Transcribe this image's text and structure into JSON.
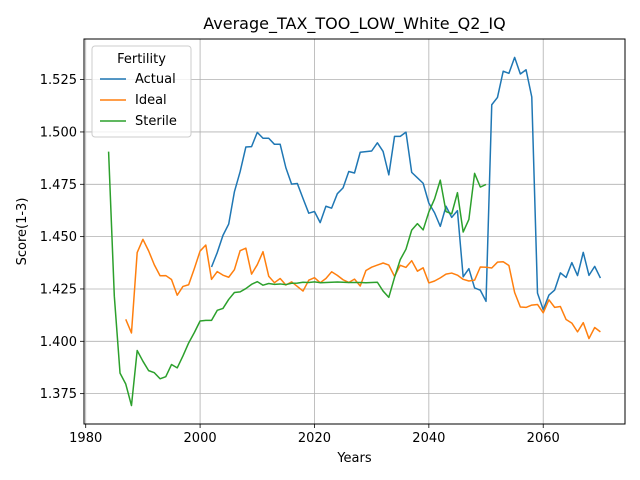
{
  "chart_data": {
    "type": "line",
    "title": "Average_TAX_TOO_LOW_White_Q2_IQ",
    "xlabel": "Years",
    "ylabel": "Score(1-3)",
    "xlim": [
      1979.7,
      2074.3
    ],
    "ylim": [
      1.3605,
      1.5444
    ],
    "xticks": [
      1980,
      2000,
      2020,
      2040,
      2060
    ],
    "xtick_labels": [
      "1980",
      "2000",
      "2020",
      "2040",
      "2060"
    ],
    "yticks": [
      1.375,
      1.4,
      1.425,
      1.45,
      1.475,
      1.5,
      1.525
    ],
    "ytick_labels": [
      "1.375",
      "1.400",
      "1.425",
      "1.450",
      "1.475",
      "1.500",
      "1.525"
    ],
    "grid": true,
    "legend": {
      "title": "Fertility",
      "position": "upper-left"
    },
    "series": [
      {
        "name": "Actual",
        "color": "#1f77b4",
        "x": [
          2002,
          2003,
          2004,
          2005,
          2006,
          2007,
          2008,
          2009,
          2010,
          2011,
          2012,
          2013,
          2014,
          2015,
          2016,
          2017,
          2018,
          2019,
          2020,
          2021,
          2022,
          2023,
          2024,
          2025,
          2026,
          2027,
          2028,
          2029,
          2030,
          2031,
          2032,
          2033,
          2034,
          2035,
          2036,
          2037,
          2038,
          2039,
          2040,
          2041,
          2042,
          2043,
          2044,
          2045,
          2046,
          2047,
          2048,
          2049,
          2050,
          2051,
          2052,
          2053,
          2054,
          2055,
          2056,
          2057,
          2058,
          2059,
          2060,
          2061,
          2062,
          2063,
          2064,
          2065,
          2066,
          2067,
          2068,
          2069,
          2070
        ],
        "values": [
          1.4355,
          1.4424,
          1.4506,
          1.456,
          1.4714,
          1.481,
          1.4928,
          1.493,
          1.4998,
          1.497,
          1.497,
          1.4941,
          1.4941,
          1.4829,
          1.4751,
          1.4754,
          1.4682,
          1.4612,
          1.462,
          1.4567,
          1.4645,
          1.4636,
          1.4705,
          1.4733,
          1.4811,
          1.4804,
          1.4903,
          1.4906,
          1.4909,
          1.4948,
          1.4907,
          1.4795,
          1.4979,
          1.4979,
          1.4999,
          1.4807,
          1.4781,
          1.4755,
          1.466,
          1.4614,
          1.4549,
          1.4645,
          1.4592,
          1.4624,
          1.4308,
          1.4347,
          1.4255,
          1.4244,
          1.4191,
          1.513,
          1.5165,
          1.529,
          1.528,
          1.5356,
          1.5277,
          1.5297,
          1.5167,
          1.423,
          1.4151,
          1.4221,
          1.4245,
          1.4327,
          1.4305,
          1.4376,
          1.4314,
          1.4425,
          1.4315,
          1.4358,
          1.4302
        ]
      },
      {
        "name": "Ideal",
        "color": "#ff7f0e",
        "x": [
          1987,
          1988,
          1989,
          1990,
          1991,
          1992,
          1993,
          1994,
          1995,
          1996,
          1997,
          1998,
          1999,
          2000,
          2001,
          2002,
          2003,
          2004,
          2005,
          2006,
          2007,
          2008,
          2009,
          2010,
          2011,
          2012,
          2013,
          2014,
          2015,
          2016,
          2017,
          2018,
          2019,
          2020,
          2021,
          2022,
          2023,
          2024,
          2025,
          2026,
          2027,
          2028,
          2029,
          2030,
          2031,
          2032,
          2033,
          2034,
          2035,
          2036,
          2037,
          2038,
          2039,
          2040,
          2041,
          2042,
          2043,
          2044,
          2045,
          2046,
          2047,
          2048,
          2049,
          2050,
          2051,
          2052,
          2053,
          2054,
          2055,
          2056,
          2057,
          2058,
          2059,
          2060,
          2061,
          2062,
          2063,
          2064,
          2065,
          2066,
          2067,
          2068,
          2069,
          2070
        ],
        "values": [
          1.4105,
          1.404,
          1.4424,
          1.4487,
          1.4432,
          1.4365,
          1.4313,
          1.4314,
          1.4295,
          1.422,
          1.4262,
          1.427,
          1.4348,
          1.4431,
          1.446,
          1.4296,
          1.4333,
          1.4316,
          1.4306,
          1.4342,
          1.4433,
          1.4445,
          1.4321,
          1.4366,
          1.4428,
          1.4311,
          1.428,
          1.43,
          1.4269,
          1.4284,
          1.4262,
          1.424,
          1.4292,
          1.4304,
          1.428,
          1.43,
          1.4332,
          1.4315,
          1.4294,
          1.4281,
          1.4297,
          1.4264,
          1.4338,
          1.4354,
          1.4364,
          1.4374,
          1.4364,
          1.431,
          1.4363,
          1.4353,
          1.4385,
          1.4335,
          1.4351,
          1.4279,
          1.4288,
          1.4303,
          1.4321,
          1.4326,
          1.4316,
          1.4296,
          1.4288,
          1.4292,
          1.4355,
          1.4354,
          1.435,
          1.4378,
          1.438,
          1.4362,
          1.4233,
          1.4164,
          1.4162,
          1.4173,
          1.4176,
          1.4136,
          1.4198,
          1.4162,
          1.4166,
          1.4104,
          1.4087,
          1.4045,
          1.4089,
          1.4013,
          1.4066,
          1.4045
        ]
      },
      {
        "name": "Sterile",
        "color": "#2ca02c",
        "x": [
          1984,
          1985,
          1986,
          1987,
          1988,
          1989,
          1990,
          1991,
          1992,
          1993,
          1994,
          1995,
          1996,
          1997,
          1998,
          1999,
          2000,
          2001,
          2002,
          2003,
          2004,
          2005,
          2006,
          2007,
          2008,
          2009,
          2010,
          2011,
          2012,
          2013,
          2014,
          2015,
          2016,
          2017,
          2018,
          2019,
          2020,
          2021,
          2022,
          2023,
          2024,
          2025,
          2026,
          2027,
          2028,
          2029,
          2030,
          2031,
          2032,
          2033,
          2034,
          2035,
          2036,
          2037,
          2038,
          2039,
          2040,
          2041,
          2042,
          2043,
          2044,
          2045,
          2046,
          2047,
          2048,
          2049,
          2050
        ],
        "values": [
          1.4906,
          1.4216,
          1.3848,
          1.3796,
          1.3693,
          1.3956,
          1.3905,
          1.386,
          1.385,
          1.3821,
          1.3831,
          1.3889,
          1.3873,
          1.393,
          1.3992,
          1.4042,
          1.4097,
          1.41,
          1.41,
          1.4148,
          1.4157,
          1.42,
          1.4233,
          1.4236,
          1.4252,
          1.4272,
          1.4285,
          1.4268,
          1.4276,
          1.4272,
          1.4274,
          1.4271,
          1.4277,
          1.4278,
          1.4282,
          1.4281,
          1.4284,
          1.428,
          1.4281,
          1.4282,
          1.4283,
          1.4282,
          1.4281,
          1.4281,
          1.4281,
          1.428,
          1.4281,
          1.4282,
          1.424,
          1.421,
          1.4305,
          1.439,
          1.444,
          1.4531,
          1.4562,
          1.4532,
          1.4618,
          1.468,
          1.477,
          1.462,
          1.4609,
          1.471,
          1.4522,
          1.4582,
          1.4802,
          1.4737,
          1.4749
        ]
      }
    ]
  }
}
